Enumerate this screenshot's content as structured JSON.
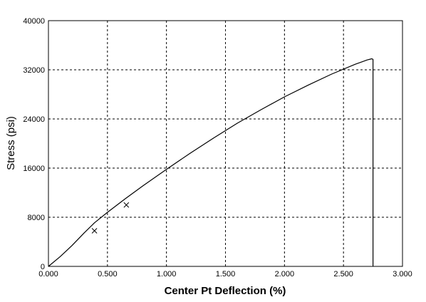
{
  "chart_data": {
    "type": "line",
    "title": "",
    "xlabel": "Center Pt Deflection (%)",
    "ylabel": "Stress (psi)",
    "xlim": [
      0,
      3.0
    ],
    "ylim": [
      0,
      40000
    ],
    "x_ticks": [
      "0.000",
      "0.500",
      "1.000",
      "1.500",
      "2.000",
      "2.500",
      "3.000"
    ],
    "y_ticks": [
      "0",
      "8000",
      "16000",
      "24000",
      "32000",
      "40000"
    ],
    "grid": true,
    "grid_style": "dashed",
    "legend": "none",
    "colors": {
      "line": "#000000",
      "grid": "#000000",
      "axis": "#000000"
    },
    "series": [
      {
        "x": [
          0.0,
          0.1,
          0.2,
          0.3,
          0.39,
          0.5,
          0.65,
          0.8,
          1.0,
          1.2,
          1.4,
          1.6,
          1.8,
          2.0,
          2.2,
          2.4,
          2.6,
          2.7,
          2.74,
          2.75,
          2.75
        ],
        "y": [
          0,
          1600,
          3400,
          5400,
          7100,
          8800,
          11000,
          13100,
          15800,
          18400,
          20900,
          23300,
          25500,
          27600,
          29500,
          31300,
          32900,
          33600,
          33800,
          33700,
          0
        ]
      }
    ],
    "markers": [
      {
        "x": 0.39,
        "y": 5800
      },
      {
        "x": 0.66,
        "y": 10000
      }
    ]
  }
}
